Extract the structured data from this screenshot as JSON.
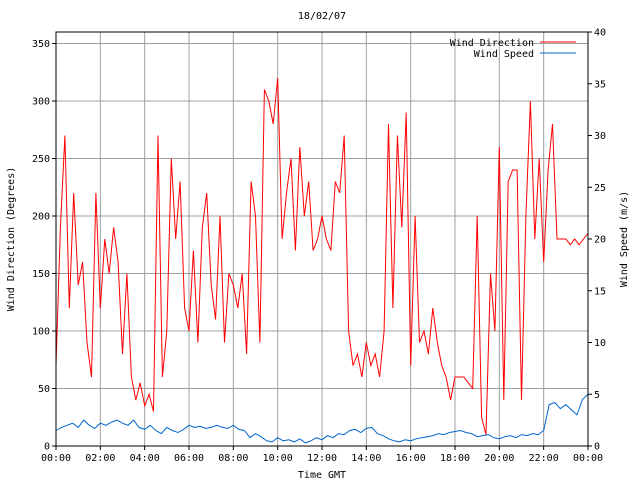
{
  "chart_data": {
    "type": "line",
    "title": "18/02/07",
    "xlabel": "Time GMT",
    "ylabel": "Wind Direction (Degrees)",
    "y2label": "Wind Speed (m/s)",
    "x_ticks": [
      "00:00",
      "02:00",
      "04:00",
      "06:00",
      "08:00",
      "10:00",
      "12:00",
      "14:00",
      "16:00",
      "18:00",
      "20:00",
      "22:00",
      "00:00"
    ],
    "y_ticks": [
      "0",
      "50",
      "100",
      "150",
      "200",
      "250",
      "300",
      "350"
    ],
    "y2_ticks": [
      "0",
      "5",
      "10",
      "15",
      "20",
      "25",
      "30",
      "35",
      "40"
    ],
    "xlim_hours": [
      0,
      24
    ],
    "ylim": [
      0,
      360
    ],
    "y2lim": [
      0,
      40
    ],
    "grid": true,
    "legend_position": "top-right",
    "series": [
      {
        "name": "Wind Direction",
        "axis": "left",
        "color": "#ff0000",
        "x_hours": [
          0.0,
          0.2,
          0.4,
          0.6,
          0.8,
          1.0,
          1.2,
          1.4,
          1.6,
          1.8,
          2.0,
          2.2,
          2.4,
          2.6,
          2.8,
          3.0,
          3.2,
          3.4,
          3.6,
          3.8,
          4.0,
          4.2,
          4.4,
          4.6,
          4.8,
          5.0,
          5.2,
          5.4,
          5.6,
          5.8,
          6.0,
          6.2,
          6.4,
          6.6,
          6.8,
          7.0,
          7.2,
          7.4,
          7.6,
          7.8,
          8.0,
          8.2,
          8.4,
          8.6,
          8.8,
          9.0,
          9.2,
          9.4,
          9.6,
          9.8,
          10.0,
          10.2,
          10.4,
          10.6,
          10.8,
          11.0,
          11.2,
          11.4,
          11.6,
          11.8,
          12.0,
          12.2,
          12.4,
          12.6,
          12.8,
          13.0,
          13.2,
          13.4,
          13.6,
          13.8,
          14.0,
          14.2,
          14.4,
          14.6,
          14.8,
          15.0,
          15.2,
          15.4,
          15.6,
          15.8,
          16.0,
          16.2,
          16.4,
          16.6,
          16.8,
          17.0,
          17.2,
          17.4,
          17.6,
          17.8,
          18.0,
          18.2,
          18.4,
          18.6,
          18.8,
          19.0,
          19.2,
          19.4,
          19.6,
          19.8,
          20.0,
          20.2,
          20.4,
          20.6,
          20.8,
          21.0,
          21.2,
          21.4,
          21.6,
          21.8,
          22.0,
          22.2,
          22.4,
          22.6,
          22.8,
          23.0,
          23.2,
          23.4,
          23.6,
          23.8,
          24.0
        ],
        "values": [
          70,
          190,
          270,
          120,
          220,
          140,
          160,
          90,
          60,
          220,
          120,
          180,
          150,
          190,
          160,
          80,
          150,
          60,
          40,
          55,
          35,
          45,
          30,
          270,
          60,
          100,
          250,
          180,
          230,
          120,
          100,
          170,
          90,
          190,
          220,
          140,
          110,
          200,
          90,
          150,
          140,
          120,
          150,
          80,
          230,
          200,
          90,
          310,
          300,
          280,
          320,
          180,
          220,
          250,
          170,
          260,
          200,
          230,
          170,
          180,
          200,
          180,
          170,
          230,
          220,
          270,
          100,
          70,
          80,
          60,
          90,
          70,
          80,
          60,
          100,
          280,
          120,
          270,
          190,
          290,
          70,
          200,
          90,
          100,
          80,
          120,
          90,
          70,
          60,
          40,
          60,
          60,
          60,
          55,
          50,
          200,
          25,
          10,
          150,
          100,
          260,
          40,
          230,
          240,
          240,
          40,
          200,
          300,
          180,
          250,
          160,
          240,
          280,
          180,
          180,
          180,
          175,
          180,
          175,
          180,
          185
        ]
      },
      {
        "name": "Wind Speed",
        "axis": "right",
        "color": "#0066cc",
        "x_hours": [
          0.0,
          0.25,
          0.5,
          0.75,
          1.0,
          1.25,
          1.5,
          1.75,
          2.0,
          2.25,
          2.5,
          2.75,
          3.0,
          3.25,
          3.5,
          3.75,
          4.0,
          4.25,
          4.5,
          4.75,
          5.0,
          5.25,
          5.5,
          5.75,
          6.0,
          6.25,
          6.5,
          6.75,
          7.0,
          7.25,
          7.5,
          7.75,
          8.0,
          8.25,
          8.5,
          8.75,
          9.0,
          9.25,
          9.5,
          9.75,
          10.0,
          10.25,
          10.5,
          10.75,
          11.0,
          11.25,
          11.5,
          11.75,
          12.0,
          12.25,
          12.5,
          12.75,
          13.0,
          13.25,
          13.5,
          13.75,
          14.0,
          14.25,
          14.5,
          14.75,
          15.0,
          15.25,
          15.5,
          15.75,
          16.0,
          16.25,
          16.5,
          16.75,
          17.0,
          17.25,
          17.5,
          17.75,
          18.0,
          18.25,
          18.5,
          18.75,
          19.0,
          19.25,
          19.5,
          19.75,
          20.0,
          20.25,
          20.5,
          20.75,
          21.0,
          21.25,
          21.5,
          21.75,
          22.0,
          22.25,
          22.5,
          22.75,
          23.0,
          23.25,
          23.5,
          23.75,
          24.0
        ],
        "values": [
          1.5,
          1.8,
          2.0,
          2.2,
          1.8,
          2.5,
          2.0,
          1.7,
          2.2,
          2.0,
          2.3,
          2.5,
          2.2,
          2.0,
          2.5,
          1.8,
          1.6,
          2.0,
          1.5,
          1.2,
          1.8,
          1.5,
          1.3,
          1.6,
          2.0,
          1.8,
          1.9,
          1.7,
          1.8,
          2.0,
          1.8,
          1.7,
          2.0,
          1.6,
          1.5,
          0.8,
          1.2,
          0.9,
          0.5,
          0.4,
          0.8,
          0.5,
          0.6,
          0.4,
          0.7,
          0.3,
          0.5,
          0.8,
          0.6,
          1.0,
          0.8,
          1.2,
          1.1,
          1.5,
          1.6,
          1.3,
          1.7,
          1.8,
          1.2,
          1.0,
          0.7,
          0.5,
          0.4,
          0.6,
          0.5,
          0.7,
          0.8,
          0.9,
          1.0,
          1.2,
          1.1,
          1.3,
          1.4,
          1.5,
          1.3,
          1.2,
          0.9,
          1.0,
          1.1,
          0.8,
          0.7,
          0.9,
          1.0,
          0.8,
          1.1,
          1.0,
          1.2,
          1.1,
          1.5,
          4.0,
          4.2,
          3.6,
          4.0,
          3.5,
          3.0,
          4.5,
          5.0
        ]
      }
    ]
  }
}
